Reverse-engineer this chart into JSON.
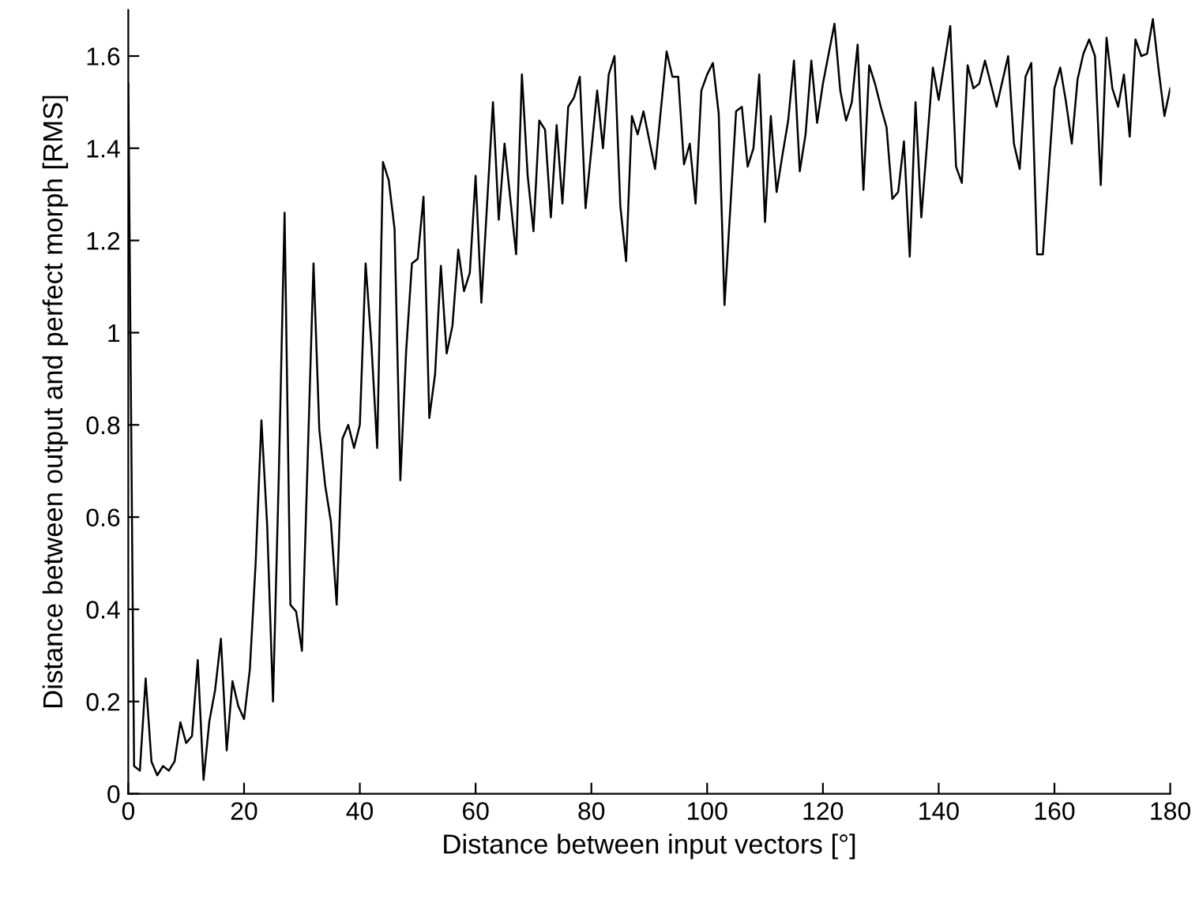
{
  "chart_data": {
    "type": "line",
    "xlabel": "Distance between input vectors [°]",
    "ylabel": "Distance between output and perfect morph [RMS]",
    "series": [
      {
        "color": "#000000",
        "x": [
          0,
          1,
          2,
          3,
          4,
          5,
          6,
          7,
          8,
          9,
          10,
          11,
          12,
          13,
          14,
          15,
          16,
          17,
          18,
          19,
          20,
          21,
          22,
          23,
          24,
          25,
          26,
          27,
          28,
          29,
          30,
          32,
          33,
          34,
          35,
          36,
          37,
          38,
          39,
          40,
          41,
          42,
          43,
          44,
          45,
          46,
          47,
          48,
          49,
          50,
          51,
          52,
          53,
          54,
          55,
          56,
          57,
          58,
          59,
          60,
          61,
          63,
          64,
          65,
          67,
          68,
          69,
          70,
          71,
          72,
          73,
          74,
          75,
          76,
          77,
          78,
          79,
          81,
          82,
          83,
          84,
          85,
          86,
          87,
          88,
          89,
          91,
          93,
          94,
          95,
          96,
          97,
          98,
          99,
          100,
          101,
          102,
          103,
          105,
          106,
          107,
          108,
          109,
          110,
          111,
          112,
          113,
          114,
          115,
          116,
          117,
          118,
          119,
          120,
          122,
          123,
          124,
          125,
          126,
          127,
          128,
          129,
          130,
          131,
          132,
          133,
          134,
          135,
          136,
          137,
          139,
          140,
          142,
          143,
          144,
          145,
          146,
          147,
          148,
          149,
          150,
          152,
          153,
          154,
          155,
          156,
          157,
          158,
          159,
          160,
          161,
          162,
          163,
          164,
          165,
          166,
          167,
          168,
          169,
          170,
          171,
          172,
          173,
          174,
          175,
          176,
          177,
          178,
          179,
          180
        ],
        "values": [
          1.54,
          0.06,
          0.05,
          0.25,
          0.07,
          0.04,
          0.06,
          0.05,
          0.07,
          0.155,
          0.11,
          0.125,
          0.29,
          0.03,
          0.157,
          0.225,
          0.336,
          0.094,
          0.244,
          0.19,
          0.162,
          0.27,
          0.5,
          0.81,
          0.58,
          0.2,
          0.69,
          1.26,
          0.41,
          0.395,
          0.31,
          1.15,
          0.79,
          0.67,
          0.59,
          0.41,
          0.77,
          0.8,
          0.75,
          0.8,
          1.15,
          0.975,
          0.75,
          1.37,
          1.33,
          1.225,
          0.68,
          0.96,
          1.15,
          1.16,
          1.295,
          0.815,
          0.91,
          1.145,
          0.955,
          1.015,
          1.18,
          1.09,
          1.13,
          1.34,
          1.065,
          1.5,
          1.245,
          1.41,
          1.17,
          1.56,
          1.34,
          1.22,
          1.46,
          1.44,
          1.25,
          1.45,
          1.28,
          1.49,
          1.51,
          1.555,
          1.27,
          1.525,
          1.4,
          1.56,
          1.6,
          1.275,
          1.155,
          1.47,
          1.43,
          1.48,
          1.355,
          1.61,
          1.555,
          1.555,
          1.365,
          1.41,
          1.28,
          1.525,
          1.56,
          1.585,
          1.475,
          1.06,
          1.48,
          1.49,
          1.36,
          1.4,
          1.56,
          1.24,
          1.47,
          1.305,
          1.385,
          1.46,
          1.59,
          1.35,
          1.43,
          1.59,
          1.455,
          1.54,
          1.67,
          1.525,
          1.46,
          1.5,
          1.625,
          1.31,
          1.58,
          1.54,
          1.49,
          1.445,
          1.29,
          1.305,
          1.415,
          1.165,
          1.5,
          1.25,
          1.575,
          1.505,
          1.665,
          1.36,
          1.325,
          1.58,
          1.53,
          1.54,
          1.59,
          1.54,
          1.49,
          1.6,
          1.41,
          1.355,
          1.555,
          1.585,
          1.17,
          1.17,
          1.35,
          1.53,
          1.575,
          1.5,
          1.41,
          1.55,
          1.605,
          1.636,
          1.6,
          1.32,
          1.64,
          1.53,
          1.49,
          1.56,
          1.425,
          1.636,
          1.6,
          1.605,
          1.68,
          1.57,
          1.47,
          1.53
        ]
      }
    ],
    "xlim": [
      0,
      180
    ],
    "ylim": [
      0,
      1.7
    ],
    "xticks": [
      0,
      20,
      40,
      60,
      80,
      100,
      120,
      140,
      160,
      180
    ],
    "yticks": [
      0,
      0.2,
      0.4,
      0.6,
      0.8,
      1,
      1.2,
      1.4,
      1.6
    ],
    "marker": "none",
    "line_style": "solid"
  }
}
